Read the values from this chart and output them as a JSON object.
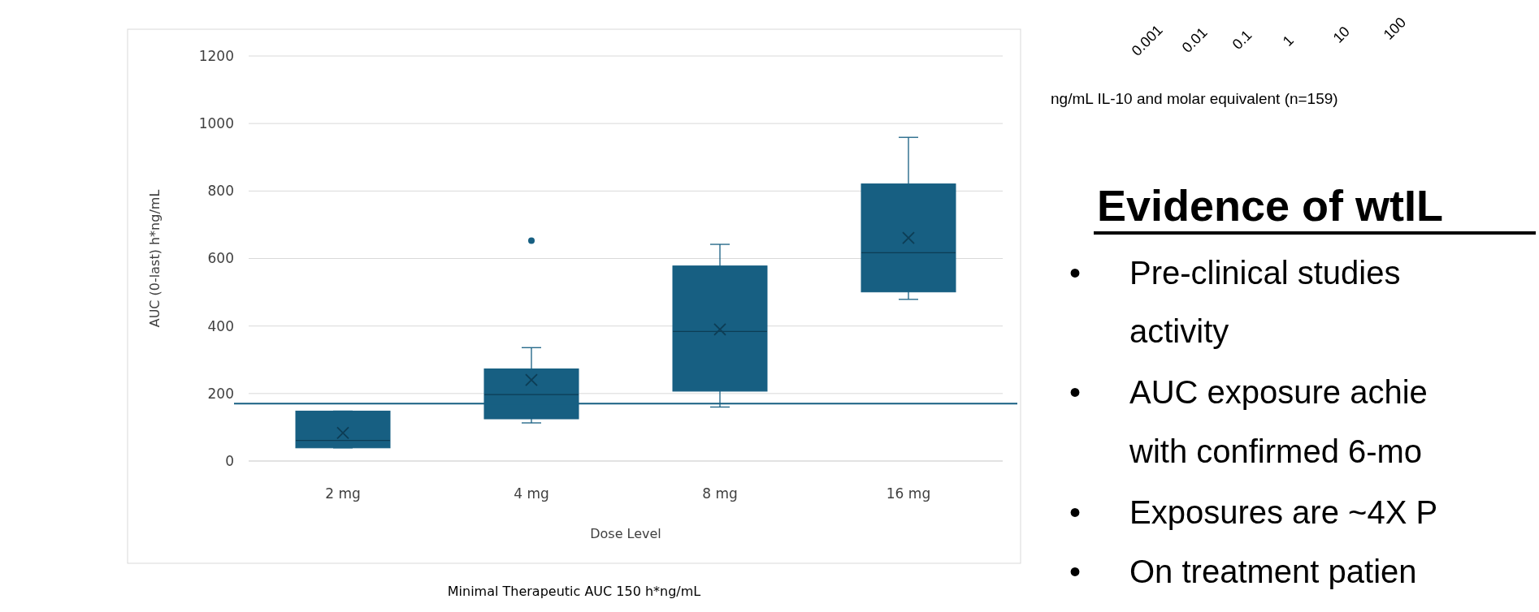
{
  "chart_data": [
    {
      "type": "box",
      "xlabel": "Dose Level",
      "ylabel": "AUC (0-last) h*ng/mL",
      "categories": [
        "2 mg",
        "4 mg",
        "8 mg",
        "16 mg"
      ],
      "color": "#175f82",
      "boxes": [
        {
          "low": 39,
          "q1": 39,
          "median": 61,
          "q3": 148,
          "high": 148,
          "mean": 83
        },
        {
          "low": 113,
          "q1": 125,
          "median": 197,
          "q3": 273,
          "high": 336,
          "mean": 240,
          "outliers": [
            653
          ]
        },
        {
          "low": 160,
          "q1": 207,
          "median": 384,
          "q3": 578,
          "high": 642,
          "mean": 390
        },
        {
          "low": 479,
          "q1": 501,
          "median": 617,
          "q3": 821,
          "high": 959,
          "mean": 661
        }
      ],
      "ylim": [
        0,
        1200
      ],
      "yticks": [
        0,
        200,
        400,
        600,
        800,
        1000,
        1200
      ],
      "grid": "y",
      "ref_lines": [
        {
          "axis": "y",
          "value": 170,
          "label": null,
          "color": "#175f82"
        }
      ],
      "annotations": [
        "Minimal Therapeutic AUC 150 h*ng/mL"
      ]
    },
    {
      "type": "other",
      "title": "Evidence of wtIL",
      "annotations": [
        "0.001",
        "0.01",
        "0.1",
        "1",
        "10",
        "100",
        "ng/mL IL-10 and molar equivalent (n=159)",
        "• Pre-clinical studies",
        "activity",
        "• AUC exposure achie",
        "with confirmed 6-mo",
        "• Exposures are ~4X P",
        "• On treatment patien"
      ]
    }
  ]
}
